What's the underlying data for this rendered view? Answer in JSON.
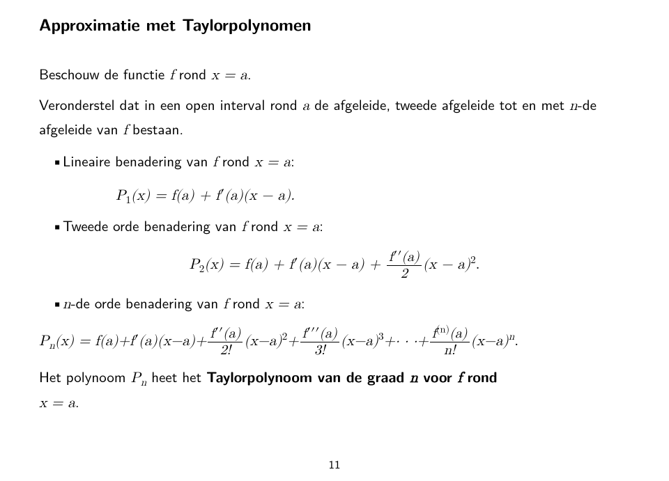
{
  "title": "Approximatie met Taylorpolynomen",
  "intro": {
    "l1a": "Beschouw de functie ",
    "l1b": " rond ",
    "l1c": ".",
    "f": "f",
    "xa": "x = a",
    "l2a": "Veronderstel dat in een open interval rond ",
    "a": "a",
    "l2b": " de afgeleide, tweede afgeleide tot en met ",
    "n": "n",
    "l2c": "-de afgeleide van ",
    "l2d": " bestaan."
  },
  "b1": {
    "text_a": "Lineaire benadering van ",
    "text_b": " rond ",
    "f": "f",
    "xa": "x = a",
    "colon": ":",
    "eq_lhs": "P",
    "eq_sub": "1",
    "eq_mid1": "(x) = f(a) + f",
    "eq_prime": "′",
    "eq_mid2": "(a)(x − a)."
  },
  "b2": {
    "text_a": "Tweede orde benadering van ",
    "text_b": " rond ",
    "f": "f",
    "xa": "x = a",
    "colon": ":",
    "eq_lhs": "P",
    "eq_sub": "2",
    "eq_mid1": "(x) = f(a) + f",
    "eq_prime": "′",
    "eq_mid2": "(a)(x − a) + ",
    "frac_num_a": "f",
    "frac_num_pp": "′′",
    "frac_num_b": "(a)",
    "frac_den": "2",
    "eq_tail": "(x − a)",
    "eq_sup": "2",
    "eq_dot": "."
  },
  "b3": {
    "n": "n",
    "text_a": "-de orde benadering van ",
    "text_b": " rond ",
    "f": "f",
    "xa": "x = a",
    "colon": ":",
    "eq_P": "P",
    "eq_Psub": "n",
    "eq_a": "(x) = f(a)+f",
    "pr1": "′",
    "eq_b": "(a)(x−a)+",
    "f2n_a": "f",
    "f2n_pp": "′′",
    "f2n_b": "(a)",
    "d2": "2!",
    "t2a": "(x−a)",
    "t2s": "2",
    "plus1": "+",
    "f3n_a": "f",
    "f3n_pp": "′′′",
    "f3n_b": "(a)",
    "d3": "3!",
    "t3a": "(x−a)",
    "t3s": "3",
    "plus2": "+· · ·+",
    "fnn_a": "f",
    "fnn_sup": "(n)",
    "fnn_b": "(a)",
    "dn": "n!",
    "tna": "(x−a)",
    "tns": "n",
    "dot": "."
  },
  "closing": {
    "a": "Het polynoom ",
    "P": "P",
    "Psub": "n",
    "b": " heet het ",
    "bold1": "Taylorpolynoom van de graad ",
    "bold_n": "n",
    "bold2": " voor ",
    "bold_f": "f",
    "bold3": " rond",
    "c": "",
    "xa": "x = a",
    "dot": "."
  },
  "page_number": "11"
}
